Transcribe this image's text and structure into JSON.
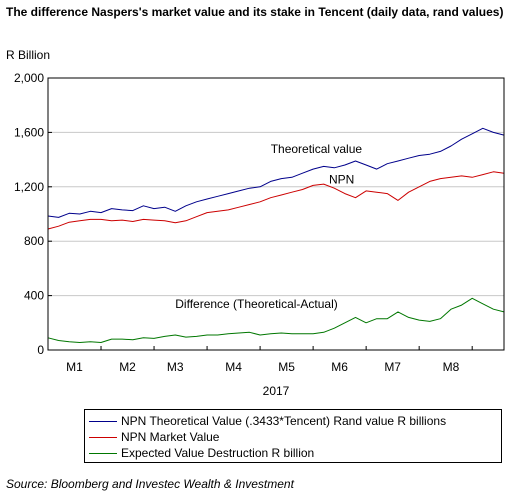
{
  "chart_data": {
    "type": "line",
    "title": "The difference Naspers's market value and its stake in Tencent (daily data, rand values)",
    "ylabel": "R Billion",
    "xlabel": "2017",
    "ylim": [
      0,
      2000
    ],
    "yticks": [
      0,
      400,
      800,
      1200,
      1600,
      2000
    ],
    "ytick_labels": [
      "0",
      "400",
      "800",
      "1,200",
      "1,600",
      "2,000"
    ],
    "xlim": [
      0,
      8.6
    ],
    "x_ticks": [
      {
        "label": "M1",
        "pos": 0.5
      },
      {
        "label": "M2",
        "pos": 1.5
      },
      {
        "label": "M3",
        "pos": 2.4
      },
      {
        "label": "M4",
        "pos": 3.5
      },
      {
        "label": "M5",
        "pos": 4.5
      },
      {
        "label": "M6",
        "pos": 5.5
      },
      {
        "label": "M7",
        "pos": 6.5
      },
      {
        "label": "M8",
        "pos": 7.6
      }
    ],
    "grid": true,
    "legend_position": "bottom",
    "series": [
      {
        "name": "NPN Theoretical Value (.3433*Tencent) Rand value R billions",
        "color": "#00008B",
        "x": [
          0,
          0.2,
          0.4,
          0.6,
          0.8,
          1.0,
          1.2,
          1.4,
          1.6,
          1.8,
          2.0,
          2.2,
          2.4,
          2.6,
          2.8,
          3.0,
          3.2,
          3.4,
          3.6,
          3.8,
          4.0,
          4.2,
          4.4,
          4.6,
          4.8,
          5.0,
          5.2,
          5.4,
          5.6,
          5.8,
          6.0,
          6.2,
          6.4,
          6.6,
          6.8,
          7.0,
          7.2,
          7.4,
          7.6,
          7.8,
          8.0,
          8.2,
          8.4,
          8.6
        ],
        "y": [
          985,
          975,
          1005,
          1000,
          1020,
          1010,
          1040,
          1030,
          1025,
          1060,
          1040,
          1050,
          1020,
          1060,
          1090,
          1110,
          1130,
          1150,
          1170,
          1190,
          1200,
          1240,
          1260,
          1270,
          1300,
          1330,
          1350,
          1340,
          1360,
          1390,
          1360,
          1330,
          1370,
          1390,
          1410,
          1430,
          1440,
          1460,
          1500,
          1550,
          1590,
          1630,
          1600,
          1580
        ]
      },
      {
        "name": "NPN Market Value",
        "color": "#CC0000",
        "x": [
          0,
          0.2,
          0.4,
          0.6,
          0.8,
          1.0,
          1.2,
          1.4,
          1.6,
          1.8,
          2.0,
          2.2,
          2.4,
          2.6,
          2.8,
          3.0,
          3.2,
          3.4,
          3.6,
          3.8,
          4.0,
          4.2,
          4.4,
          4.6,
          4.8,
          5.0,
          5.2,
          5.4,
          5.6,
          5.8,
          6.0,
          6.2,
          6.4,
          6.6,
          6.8,
          7.0,
          7.2,
          7.4,
          7.6,
          7.8,
          8.0,
          8.2,
          8.4,
          8.6
        ],
        "y": [
          890,
          910,
          940,
          950,
          960,
          960,
          950,
          955,
          945,
          960,
          955,
          950,
          935,
          950,
          980,
          1010,
          1020,
          1030,
          1050,
          1070,
          1090,
          1120,
          1140,
          1160,
          1180,
          1210,
          1220,
          1190,
          1150,
          1120,
          1170,
          1160,
          1150,
          1100,
          1160,
          1200,
          1240,
          1260,
          1270,
          1280,
          1270,
          1290,
          1310,
          1300
        ]
      },
      {
        "name": "Expected Value Destruction R billion",
        "color": "#007700",
        "x": [
          0,
          0.2,
          0.4,
          0.6,
          0.8,
          1.0,
          1.2,
          1.4,
          1.6,
          1.8,
          2.0,
          2.2,
          2.4,
          2.6,
          2.8,
          3.0,
          3.2,
          3.4,
          3.6,
          3.8,
          4.0,
          4.2,
          4.4,
          4.6,
          4.8,
          5.0,
          5.2,
          5.4,
          5.6,
          5.8,
          6.0,
          6.2,
          6.4,
          6.6,
          6.8,
          7.0,
          7.2,
          7.4,
          7.6,
          7.8,
          8.0,
          8.2,
          8.4,
          8.6
        ],
        "y": [
          90,
          70,
          60,
          55,
          60,
          55,
          80,
          80,
          75,
          90,
          85,
          100,
          110,
          95,
          100,
          110,
          110,
          120,
          125,
          130,
          110,
          120,
          125,
          120,
          120,
          120,
          130,
          160,
          200,
          240,
          200,
          230,
          230,
          280,
          240,
          220,
          210,
          230,
          300,
          330,
          380,
          340,
          300,
          280
        ]
      }
    ],
    "annotations": [
      {
        "text": "Theoretical value",
        "x": 4.2,
        "y": 1450
      },
      {
        "text": "NPN",
        "x": 5.3,
        "y": 1225
      },
      {
        "text": "Difference (Theoretical-Actual)",
        "x": 2.4,
        "y": 310
      }
    ]
  },
  "source": "Source: Bloomberg and Investec Wealth & Investment"
}
